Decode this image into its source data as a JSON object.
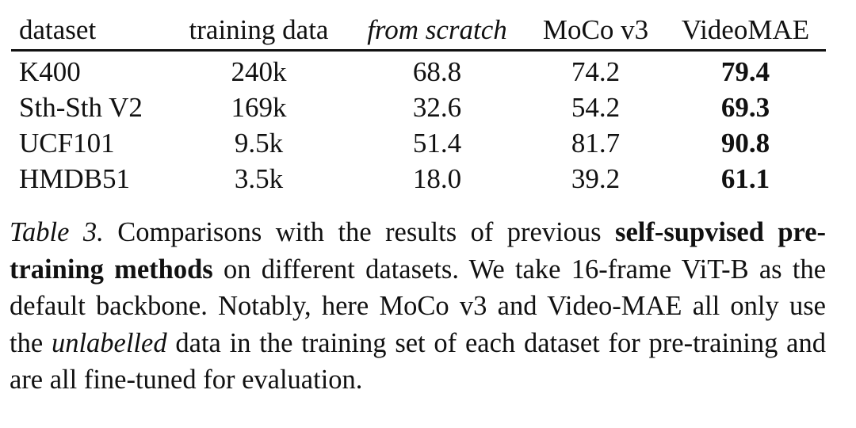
{
  "table": {
    "columns": [
      "dataset",
      "training data",
      "from scratch",
      "MoCo v3",
      "VideoMAE"
    ],
    "rows": [
      [
        "K400",
        "240k",
        "68.8",
        "74.2",
        "79.4"
      ],
      [
        "Sth-Sth V2",
        "169k",
        "32.6",
        "54.2",
        "69.3"
      ],
      [
        "UCF101",
        "9.5k",
        "51.4",
        "81.7",
        "90.8"
      ],
      [
        "HMDB51",
        "3.5k",
        "18.0",
        "39.2",
        "61.1"
      ]
    ]
  },
  "caption": {
    "label": "Table 3.",
    "text1": "Comparisons with the results of previous",
    "bold": "self-supvised pre-training methods",
    "text2": "on different datasets.  We take 16-frame ViT-B as the default backbone. Notably, here MoCo v3 and Video-MAE all only use the",
    "italic": "unlabelled",
    "text3": "data in the training set of each dataset for pre-training and are all fine-tuned for evaluation."
  }
}
